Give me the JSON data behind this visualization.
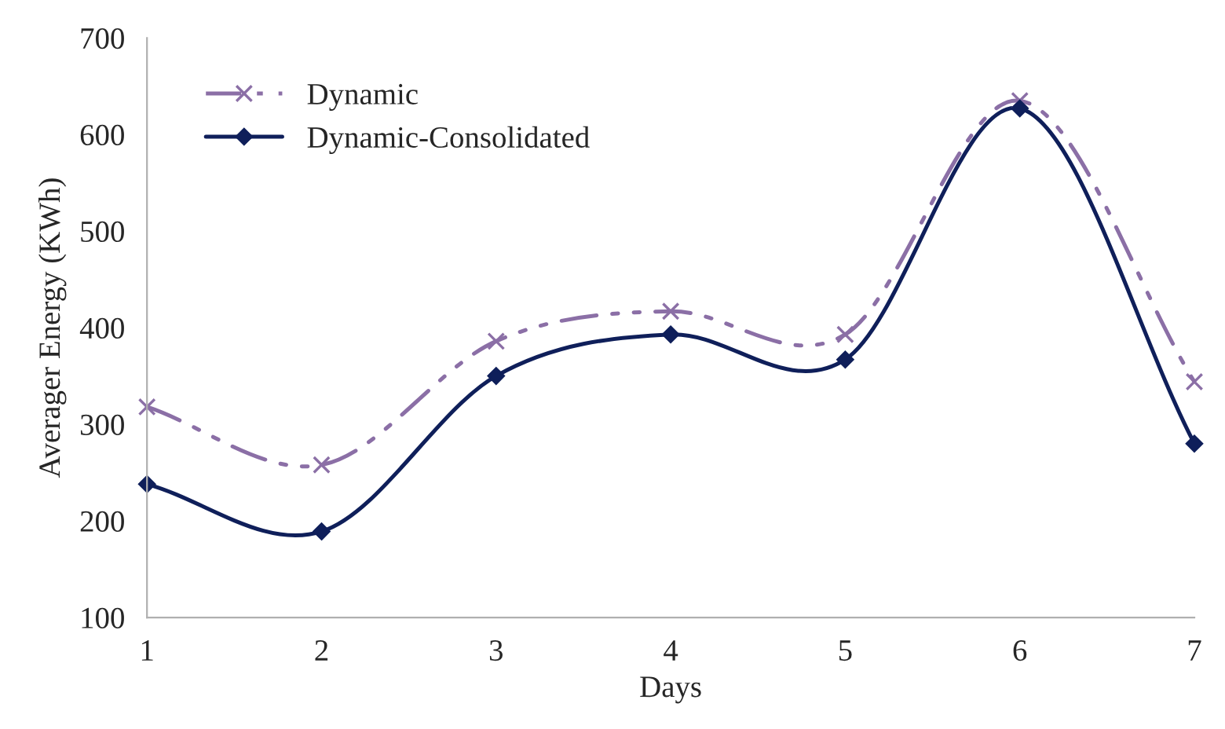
{
  "chart_data": {
    "type": "line",
    "xlabel": "Days",
    "ylabel": "Averager Energy (KWh)",
    "x": [
      1,
      2,
      3,
      4,
      5,
      6,
      7
    ],
    "series": [
      {
        "name": "Dynamic",
        "color": "#8b6fa6",
        "values": [
          318,
          258,
          386,
          417,
          393,
          635,
          344
        ],
        "marker": "cross",
        "line_style": "dashed"
      },
      {
        "name": "Dynamic-Consolidated",
        "color": "#0f1f5a",
        "values": [
          238,
          189,
          350,
          393,
          367,
          627,
          280
        ],
        "marker": "diamond",
        "line_style": "solid"
      }
    ],
    "xlim": [
      1,
      7
    ],
    "xticks": [
      1,
      2,
      3,
      4,
      5,
      6,
      7
    ],
    "ylim": [
      100,
      700
    ],
    "yticks": [
      100,
      200,
      300,
      400,
      500,
      600,
      700
    ],
    "grid": false,
    "legend": "top left"
  }
}
